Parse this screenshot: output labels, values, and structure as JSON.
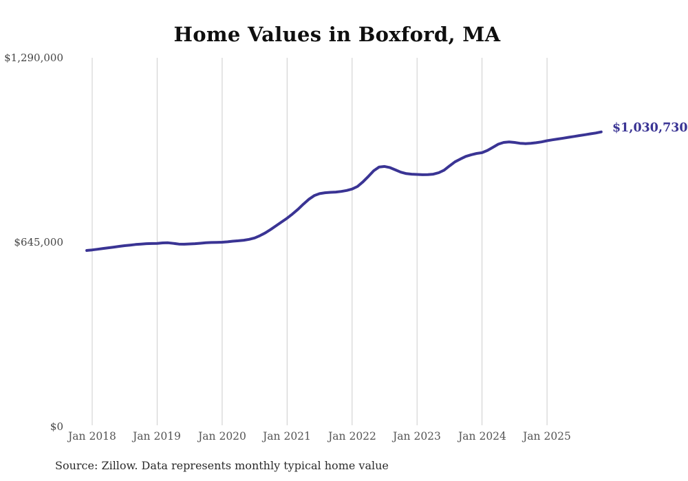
{
  "chart_data": {
    "type": "line",
    "title": "Home Values in Boxford, MA",
    "grid": "vertical",
    "legend": "none",
    "ylim": [
      0,
      1290000
    ],
    "y_ticks": [
      {
        "value": 0,
        "label": "$0"
      },
      {
        "value": 645000,
        "label": "$645,000"
      },
      {
        "value": 1290000,
        "label": "$1,290,000"
      }
    ],
    "x_ticks": [
      {
        "month": "2018-01",
        "label": "Jan 2018"
      },
      {
        "month": "2019-01",
        "label": "Jan 2019"
      },
      {
        "month": "2020-01",
        "label": "Jan 2020"
      },
      {
        "month": "2021-01",
        "label": "Jan 2021"
      },
      {
        "month": "2022-01",
        "label": "Jan 2022"
      },
      {
        "month": "2023-01",
        "label": "Jan 2023"
      },
      {
        "month": "2024-01",
        "label": "Jan 2024"
      },
      {
        "month": "2025-01",
        "label": "Jan 2025"
      }
    ],
    "series": [
      {
        "name": "Typical home value",
        "start_month": "2017-12",
        "values": [
          616000,
          618000,
          620500,
          623000,
          625500,
          628000,
          630500,
          633000,
          635000,
          637000,
          638500,
          640000,
          640500,
          641000,
          642500,
          643000,
          641000,
          638500,
          638000,
          639000,
          640000,
          641500,
          643000,
          644000,
          644500,
          645000,
          646500,
          648500,
          650000,
          652000,
          655000,
          660000,
          668000,
          678000,
          690000,
          703000,
          716000,
          729000,
          744000,
          760000,
          778000,
          795000,
          808000,
          815000,
          818000,
          819500,
          820500,
          822500,
          826000,
          831000,
          840000,
          856000,
          875000,
          895000,
          908000,
          910000,
          906000,
          898000,
          890000,
          885000,
          883000,
          882000,
          881000,
          881500,
          883000,
          888000,
          897000,
          912000,
          926000,
          936000,
          945000,
          951000,
          955500,
          958000,
          966000,
          977000,
          988000,
          994000,
          996000,
          994000,
          991000,
          990000,
          991000,
          993000,
          996000,
          1000000,
          1003000,
          1006000,
          1009000,
          1012000,
          1015000,
          1018000,
          1021000,
          1024000,
          1027000,
          1030730
        ]
      }
    ],
    "end_label": "$1,030,730",
    "end_value": 1030730
  },
  "source_note": "Source: Zillow. Data represents monthly typical home value",
  "colors": {
    "line": "#3a3494",
    "grid": "#cccccc",
    "title_text": "#0f0f0f",
    "axis_text": "#555555",
    "end_label_text": "#3a3494",
    "background": "#ffffff"
  }
}
